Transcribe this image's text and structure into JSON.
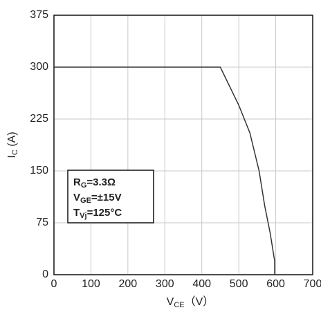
{
  "chart_data": {
    "type": "line",
    "x_label": [
      "V",
      "CE",
      "（V）"
    ],
    "y_label": [
      "I",
      "C",
      " (A)"
    ],
    "x": [
      0,
      450,
      500,
      530,
      555,
      570,
      585,
      597,
      597
    ],
    "series": [
      {
        "color": "#333333",
        "values": [
          300,
          300,
          245,
          205,
          150,
          100,
          60,
          20,
          0
        ]
      }
    ],
    "xlim": [
      0,
      700
    ],
    "ylim": [
      0,
      375
    ],
    "xticks": [
      0,
      100,
      200,
      300,
      400,
      500,
      600,
      700
    ],
    "yticks": [
      0,
      75,
      150,
      225,
      300,
      375
    ],
    "grid": true,
    "annotation": [
      [
        "R",
        "G",
        "=3.3Ω"
      ],
      [
        "V",
        "GE",
        "=±15V"
      ],
      [
        "T",
        "Vj",
        "=125°C"
      ]
    ]
  }
}
